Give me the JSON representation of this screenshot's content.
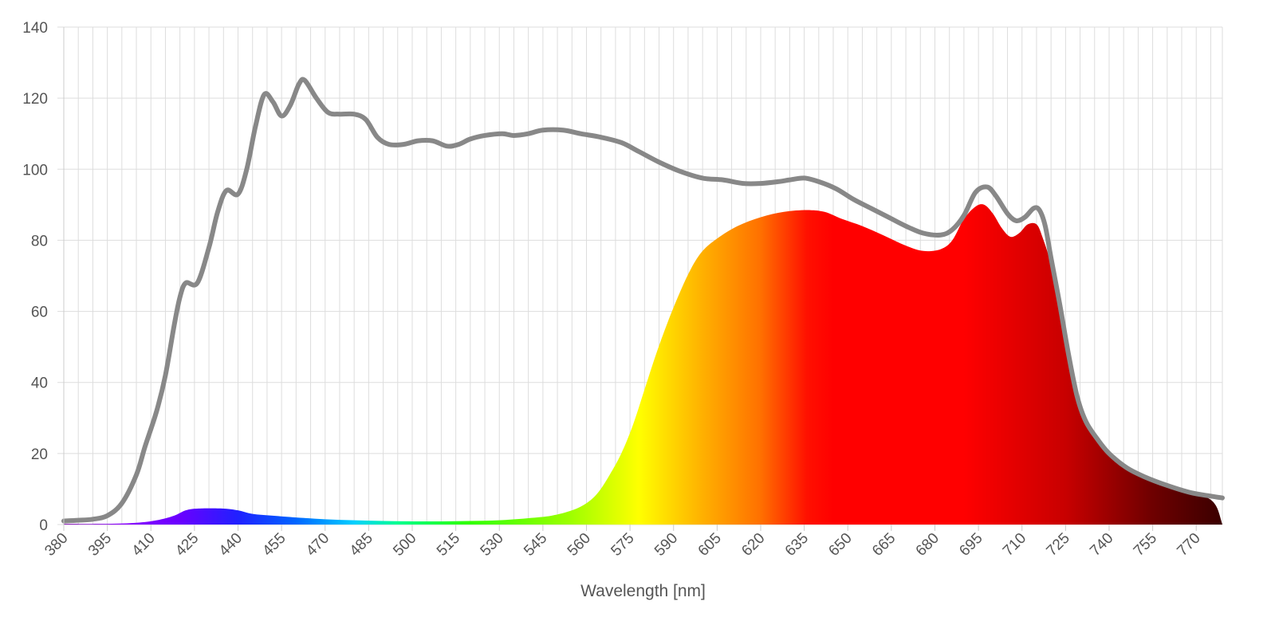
{
  "chart_data": {
    "type": "area",
    "xlabel": "Wavelength [nm]",
    "ylabel": "",
    "xlim": [
      380,
      779
    ],
    "ylim": [
      0,
      140
    ],
    "x_ticks": [
      380,
      395,
      410,
      425,
      440,
      455,
      470,
      485,
      500,
      515,
      530,
      545,
      560,
      575,
      590,
      605,
      620,
      635,
      650,
      665,
      680,
      695,
      710,
      725,
      740,
      755,
      770
    ],
    "y_ticks": [
      0,
      20,
      40,
      60,
      80,
      100,
      120,
      140
    ],
    "grid": true,
    "legend": "none",
    "series": [
      {
        "kind": "line",
        "color": "#888888",
        "points": [
          [
            380,
            1
          ],
          [
            385,
            1.2
          ],
          [
            390,
            1.5
          ],
          [
            395,
            2.5
          ],
          [
            400,
            6
          ],
          [
            405,
            14
          ],
          [
            408,
            22
          ],
          [
            412,
            32
          ],
          [
            415,
            42
          ],
          [
            418,
            56
          ],
          [
            420,
            64
          ],
          [
            422,
            68
          ],
          [
            426,
            68
          ],
          [
            430,
            78
          ],
          [
            433,
            88
          ],
          [
            436,
            94
          ],
          [
            440,
            93
          ],
          [
            443,
            100
          ],
          [
            446,
            112
          ],
          [
            449,
            121
          ],
          [
            452,
            119
          ],
          [
            455,
            115
          ],
          [
            458,
            118
          ],
          [
            461,
            124
          ],
          [
            463,
            125
          ],
          [
            467,
            120
          ],
          [
            471,
            116
          ],
          [
            475,
            115.5
          ],
          [
            480,
            115.5
          ],
          [
            484,
            114
          ],
          [
            488,
            109
          ],
          [
            492,
            107
          ],
          [
            497,
            107
          ],
          [
            502,
            108
          ],
          [
            507,
            108
          ],
          [
            512,
            106.5
          ],
          [
            516,
            107
          ],
          [
            520,
            108.5
          ],
          [
            525,
            109.5
          ],
          [
            531,
            110
          ],
          [
            535,
            109.5
          ],
          [
            540,
            110
          ],
          [
            545,
            111
          ],
          [
            552,
            111
          ],
          [
            558,
            110
          ],
          [
            565,
            109
          ],
          [
            572,
            107.5
          ],
          [
            578,
            105
          ],
          [
            585,
            102
          ],
          [
            592,
            99.5
          ],
          [
            600,
            97.5
          ],
          [
            607,
            97
          ],
          [
            614,
            96
          ],
          [
            620,
            96
          ],
          [
            626,
            96.5
          ],
          [
            630,
            97
          ],
          [
            635,
            97.5
          ],
          [
            640,
            96.5
          ],
          [
            646,
            94.5
          ],
          [
            652,
            91.5
          ],
          [
            658,
            89
          ],
          [
            664,
            86.5
          ],
          [
            670,
            84
          ],
          [
            676,
            82
          ],
          [
            682,
            81.5
          ],
          [
            686,
            83
          ],
          [
            690,
            87
          ],
          [
            694,
            93.5
          ],
          [
            698,
            95
          ],
          [
            701,
            92.5
          ],
          [
            705,
            87.5
          ],
          [
            708,
            85.5
          ],
          [
            711,
            86.5
          ],
          [
            714,
            89
          ],
          [
            716,
            88.5
          ],
          [
            718,
            84
          ],
          [
            720,
            75
          ],
          [
            723,
            62
          ],
          [
            726,
            48
          ],
          [
            729,
            36
          ],
          [
            732,
            29
          ],
          [
            736,
            24
          ],
          [
            740,
            20
          ],
          [
            746,
            16
          ],
          [
            752,
            13.5
          ],
          [
            760,
            11
          ],
          [
            768,
            9
          ],
          [
            775,
            8
          ],
          [
            779,
            7.5
          ]
        ]
      },
      {
        "kind": "area",
        "fill": "visible-spectrum-gradient",
        "points": [
          [
            380,
            0.2
          ],
          [
            395,
            0.2
          ],
          [
            405,
            0.5
          ],
          [
            412,
            1.2
          ],
          [
            418,
            2.5
          ],
          [
            422,
            4
          ],
          [
            426,
            4.5
          ],
          [
            435,
            4.5
          ],
          [
            440,
            4
          ],
          [
            445,
            3
          ],
          [
            452,
            2.5
          ],
          [
            460,
            2
          ],
          [
            470,
            1.5
          ],
          [
            480,
            1.2
          ],
          [
            490,
            1
          ],
          [
            500,
            0.9
          ],
          [
            510,
            0.9
          ],
          [
            520,
            1
          ],
          [
            530,
            1.2
          ],
          [
            540,
            1.8
          ],
          [
            548,
            2.5
          ],
          [
            555,
            4
          ],
          [
            560,
            6
          ],
          [
            564,
            9
          ],
          [
            568,
            14
          ],
          [
            572,
            20
          ],
          [
            576,
            28
          ],
          [
            580,
            38
          ],
          [
            584,
            48
          ],
          [
            588,
            57
          ],
          [
            592,
            65
          ],
          [
            596,
            72
          ],
          [
            600,
            77
          ],
          [
            605,
            80.5
          ],
          [
            612,
            84
          ],
          [
            620,
            86.5
          ],
          [
            628,
            88
          ],
          [
            636,
            88.5
          ],
          [
            642,
            88
          ],
          [
            648,
            86
          ],
          [
            655,
            84
          ],
          [
            662,
            81.5
          ],
          [
            670,
            78.5
          ],
          [
            676,
            77
          ],
          [
            682,
            77.5
          ],
          [
            686,
            80
          ],
          [
            690,
            86
          ],
          [
            694,
            89.5
          ],
          [
            697,
            90
          ],
          [
            700,
            87.5
          ],
          [
            703,
            83.5
          ],
          [
            706,
            81
          ],
          [
            709,
            82
          ],
          [
            712,
            84.5
          ],
          [
            715,
            84.5
          ],
          [
            717,
            81
          ],
          [
            720,
            73
          ],
          [
            723,
            60
          ],
          [
            726,
            47
          ],
          [
            729,
            36
          ],
          [
            732,
            29
          ],
          [
            736,
            24
          ],
          [
            740,
            20
          ],
          [
            746,
            16
          ],
          [
            752,
            13.5
          ],
          [
            760,
            11
          ],
          [
            768,
            9
          ],
          [
            774,
            7.5
          ],
          [
            777,
            5
          ],
          [
            779,
            0
          ]
        ]
      }
    ]
  }
}
